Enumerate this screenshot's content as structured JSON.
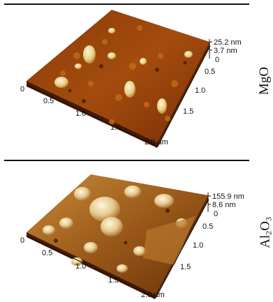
{
  "panels": [
    {
      "material_main": "MgO",
      "material_sub": "",
      "material_tail": "",
      "z_max": "25.2 nm",
      "z_mid": "3.7 nm",
      "z_zero": "0",
      "x_ticks": [
        "0",
        "0.5",
        "1.0",
        "1.5",
        "2.0 µm"
      ],
      "y_ticks": [
        "0.5",
        "1.0",
        "1.5",
        "2.0 µm"
      ]
    },
    {
      "material_main": "Al",
      "material_sub": "2",
      "material_tail": "O",
      "material_sub2": "3",
      "z_max": "155.9 nm",
      "z_mid": "8.6 nm",
      "z_zero": "0",
      "x_ticks": [
        "0",
        "0.5",
        "1.0",
        "1.5",
        "2.0 µm"
      ],
      "y_ticks": [
        "0.5",
        "1.0",
        "1.5",
        "2.0 µm"
      ]
    }
  ],
  "colors": {
    "surface_dark": "#6b2a05",
    "surface_mid": "#b55a12",
    "surface_light": "#f0e0a8"
  }
}
